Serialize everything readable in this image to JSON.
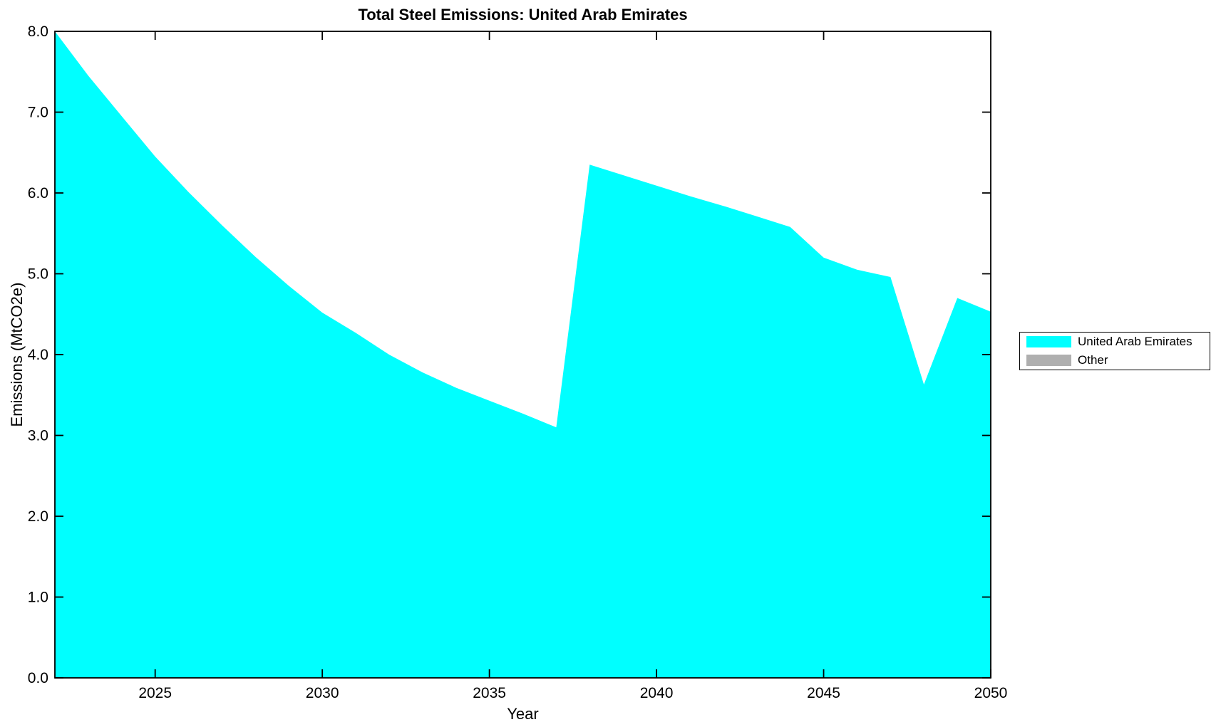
{
  "page": {
    "background_color": "#ffffff",
    "text_color": "#000000",
    "axis_color": "#000000"
  },
  "legend": {
    "position": "right-outside",
    "items": [
      {
        "label": "United Arab Emirates",
        "color": "#00ffff"
      },
      {
        "label": "Other",
        "color": "#afafaf"
      }
    ]
  },
  "chart_data": {
    "type": "area",
    "title": "Total Steel Emissions: United Arab Emirates",
    "xlabel": "Year",
    "ylabel": "Emissions (MtCO2e)",
    "grid": false,
    "tick_direction": "in",
    "box": true,
    "xlim": [
      2022,
      2050
    ],
    "ylim": [
      0,
      8
    ],
    "xticks": [
      2025,
      2030,
      2035,
      2040,
      2045,
      2050
    ],
    "xtick_labels": [
      "2025",
      "2030",
      "2035",
      "2040",
      "2045",
      "2050"
    ],
    "yticks": [
      0,
      1,
      2,
      3,
      4,
      5,
      6,
      7,
      8
    ],
    "ytick_labels": [
      "0.0",
      "1.0",
      "2.0",
      "3.0",
      "4.0",
      "5.0",
      "6.0",
      "7.0",
      "8.0"
    ],
    "series": [
      {
        "name": "United Arab Emirates",
        "color": "#00ffff",
        "x": [
          2022,
          2023,
          2024,
          2025,
          2026,
          2027,
          2028,
          2029,
          2030,
          2031,
          2032,
          2033,
          2034,
          2035,
          2036,
          2037,
          2038,
          2039,
          2040,
          2041,
          2042,
          2043,
          2044,
          2045,
          2046,
          2047,
          2048,
          2049,
          2050
        ],
        "values": [
          8.0,
          7.45,
          6.95,
          6.45,
          6.01,
          5.6,
          5.21,
          4.85,
          4.52,
          4.27,
          4.0,
          3.78,
          3.59,
          3.43,
          3.27,
          3.1,
          6.35,
          6.22,
          6.09,
          5.96,
          5.84,
          5.71,
          5.58,
          5.2,
          5.05,
          4.96,
          3.63,
          4.7,
          4.53
        ]
      },
      {
        "name": "Other",
        "color": "#afafaf",
        "x": [],
        "values": []
      }
    ]
  }
}
